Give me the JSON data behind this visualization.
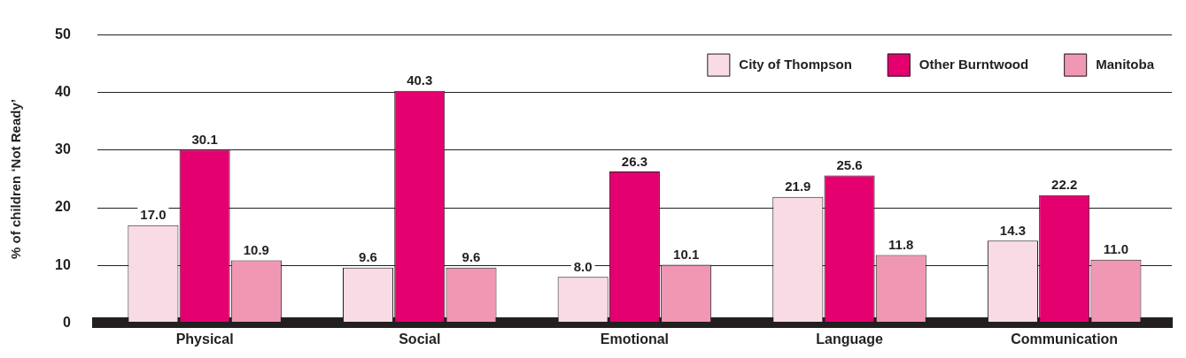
{
  "chart_data": {
    "type": "bar",
    "ylabel": "% of children ‘Not Ready’",
    "categories": [
      "Physical",
      "Social",
      "Emotional",
      "Language",
      "Communication"
    ],
    "series": [
      {
        "name": "City of Thompson",
        "color": "#f9dbe5",
        "values": [
          17.0,
          9.6,
          8.0,
          21.9,
          14.3
        ],
        "value_labels": [
          "17.0",
          "9.6",
          "8.0",
          "21.9",
          "14.3"
        ]
      },
      {
        "name": "Other Burntwood",
        "color": "#e4006f",
        "values": [
          30.1,
          40.3,
          26.3,
          25.6,
          22.2
        ],
        "value_labels": [
          "30.1",
          "40.3",
          "26.3",
          "25.6",
          "22.2"
        ]
      },
      {
        "name": "Manitoba",
        "color": "#f097b3",
        "values": [
          10.9,
          9.6,
          10.1,
          11.8,
          11.0
        ],
        "value_labels": [
          "10.9",
          "9.6",
          "10.1",
          "11.8",
          "11.0"
        ]
      }
    ],
    "ylim": [
      0,
      50
    ],
    "yticks": [
      0,
      10,
      20,
      30,
      40,
      50
    ],
    "grid": "y",
    "legend": "top right"
  }
}
